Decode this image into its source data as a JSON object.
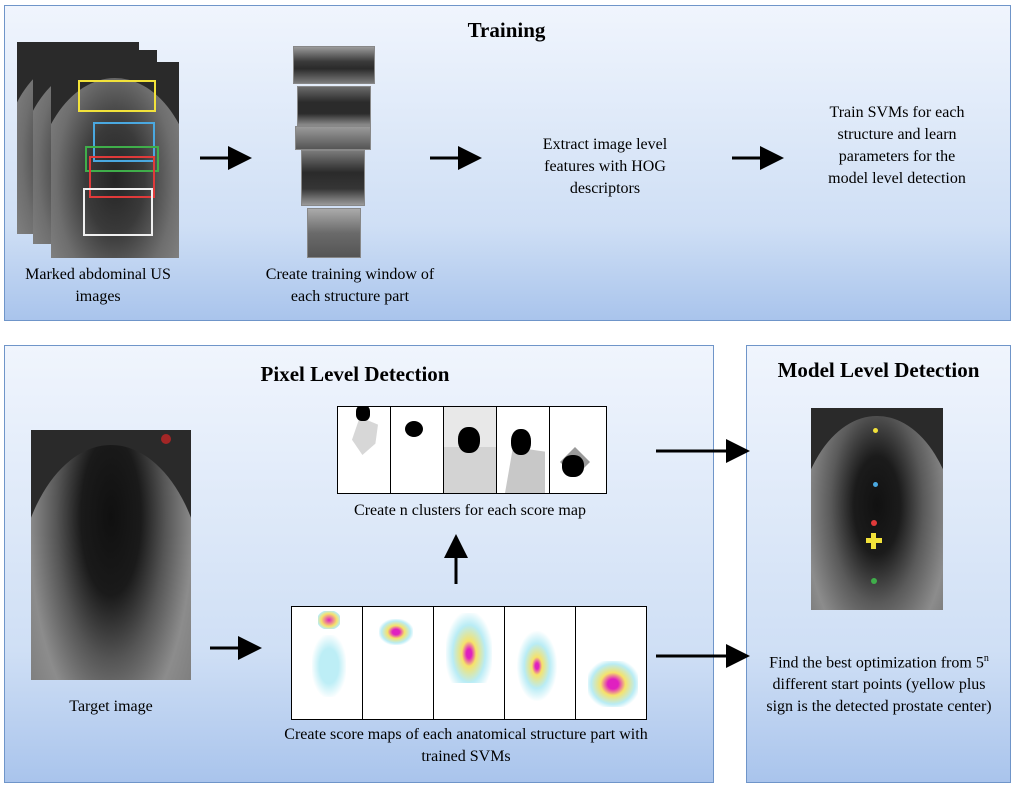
{
  "training": {
    "title": "Training",
    "caption_marked": "Marked abdominal US images",
    "caption_window": "Create training window of each structure part",
    "caption_hog": "Extract image level features with HOG descriptors",
    "caption_svm": "Train SVMs for each structure and learn parameters for the model level detection"
  },
  "pixel": {
    "title": "Pixel Level Detection",
    "caption_target": "Target image",
    "caption_clusters": "Create n clusters for each score map",
    "caption_scoremaps": "Create score maps of each anatomical structure part with trained SVMs"
  },
  "model": {
    "title": "Model Level Detection",
    "caption_prefix": "Find the best optimization from 5",
    "caption_sup": "n",
    "caption_suffix": " different start points (yellow plus sign is the detected prostate center)"
  },
  "colors": {
    "box_yellow": "#f2e23a",
    "box_blue": "#4aa8e0",
    "box_green": "#3fae4a",
    "box_red": "#e03a3a",
    "box_white": "#f0f0f0",
    "arrow": "#000000"
  }
}
